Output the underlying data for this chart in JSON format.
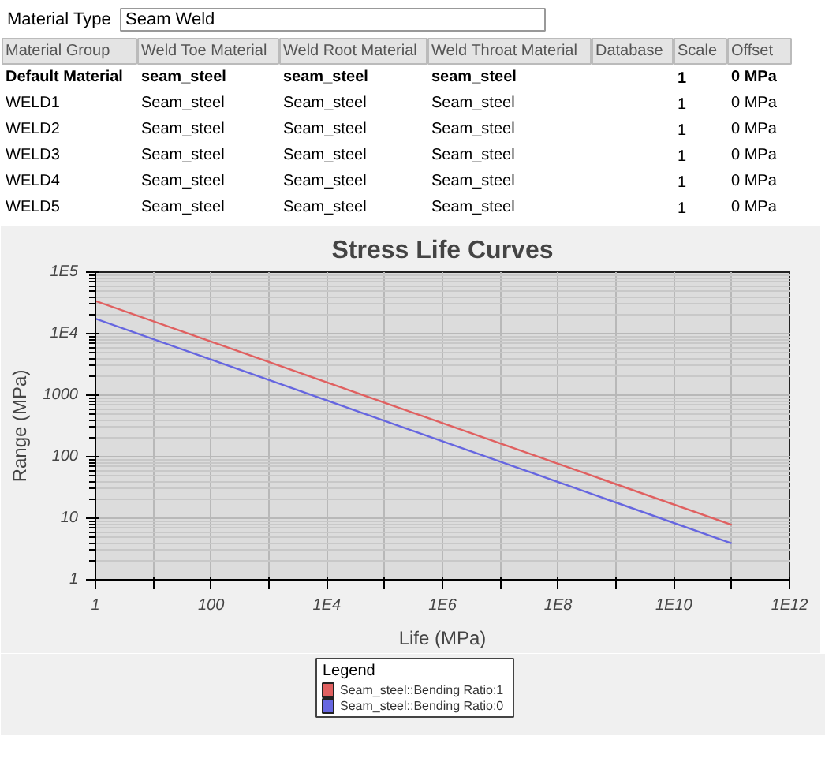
{
  "chart_data": {
    "type": "line",
    "title": "Stress Life Curves",
    "xlabel": "Life (MPa)",
    "ylabel": "Range (MPa)",
    "legend_title": "Legend",
    "log": "xy",
    "grid": true,
    "legend": "bottom",
    "annotations": [
      "Material Type\tSeam Weld",
      "Material Group\tWeld Toe Material\tWeld Root Material\tWeld Throat Material\tDatabase\tScale\tOffset",
      "Default Material\tseam_steel\tseam_steel\tseam_steel\t\t1\t0 MPa",
      "WELD1\tSeam_steel\tSeam_steel\tSeam_steel\t\t1\t0 MPa",
      "WELD2\tSeam_steel\tSeam_steel\tSeam_steel\t\t1\t0 MPa",
      "WELD3\tSeam_steel\tSeam_steel\tSeam_steel\t\t1\t0 MPa",
      "WELD4\tSeam_steel\tSeam_steel\tSeam_steel\t\t1\t0 MPa",
      "WELD5\tSeam_steel\tSeam_steel\tSeam_steel\t\t1\t0 MPa"
    ],
    "x": [
      1,
      100000000000
    ],
    "series": [
      {
        "name": "Seam_steel::Bending Ratio:1",
        "color": "#e06060",
        "values": [
          34000,
          7.8
        ]
      },
      {
        "name": "Seam_steel::Bending Ratio:0",
        "color": "#6666e0",
        "values": [
          17500,
          3.9
        ]
      }
    ],
    "xlim": [
      1,
      1000000000000
    ],
    "ylim": [
      1,
      100000
    ],
    "xticks": [
      1,
      {
        "value": 10,
        "label": null
      },
      100,
      {
        "value": 1000,
        "label": null
      },
      {
        "value": 10000,
        "label": "1E4"
      },
      {
        "value": 100000,
        "label": null
      },
      {
        "value": 1000000,
        "label": "1E6"
      },
      {
        "value": 10000000,
        "label": null
      },
      {
        "value": 100000000,
        "label": "1E8"
      },
      {
        "value": 1000000000,
        "label": null
      },
      {
        "value": 10000000000,
        "label": "1E10"
      },
      {
        "value": 100000000000,
        "label": null
      },
      {
        "value": 1000000000000,
        "label": "1E12"
      }
    ],
    "yticks": [
      1,
      10,
      100,
      1000,
      {
        "value": 10000,
        "label": "1E4"
      },
      {
        "value": 100000,
        "label": "1E5"
      }
    ]
  }
}
